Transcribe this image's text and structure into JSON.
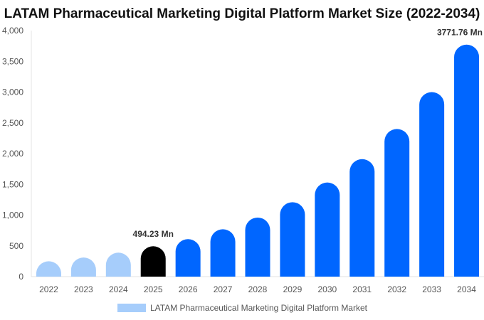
{
  "chart_data": {
    "type": "bar",
    "title": "LATAM Pharmaceutical Marketing Digital Platform Market Size (2022-2034)",
    "xlabel": "",
    "ylabel": "",
    "categories": [
      "2022",
      "2023",
      "2024",
      "2025",
      "2026",
      "2027",
      "2028",
      "2029",
      "2030",
      "2031",
      "2032",
      "2033",
      "2034"
    ],
    "series": [
      {
        "name": "LATAM Pharmaceutical Marketing Digital Platform Market",
        "values": [
          250,
          310,
          390,
          494.23,
          610,
          770,
          960,
          1210,
          1530,
          1910,
          2400,
          3000,
          3771.76
        ]
      }
    ],
    "ylim": [
      0,
      4000
    ],
    "yticks": [
      0,
      500,
      1000,
      1500,
      2000,
      2500,
      3000,
      3500,
      4000
    ],
    "ytick_labels": [
      "0",
      "500",
      "1,000",
      "1,500",
      "2,000",
      "2,500",
      "3,000",
      "3,500",
      "4,000"
    ],
    "data_labels": [
      {
        "index": 3,
        "text": "494.23 Mn"
      },
      {
        "index": 12,
        "text": "3771.76 Mn"
      }
    ],
    "colors": {
      "historic": "#a6cdfb",
      "current": "#000000",
      "forecast": "#0066ff",
      "legend": "#a6cdfb"
    },
    "legend_position": "bottom-center",
    "grid": false
  }
}
